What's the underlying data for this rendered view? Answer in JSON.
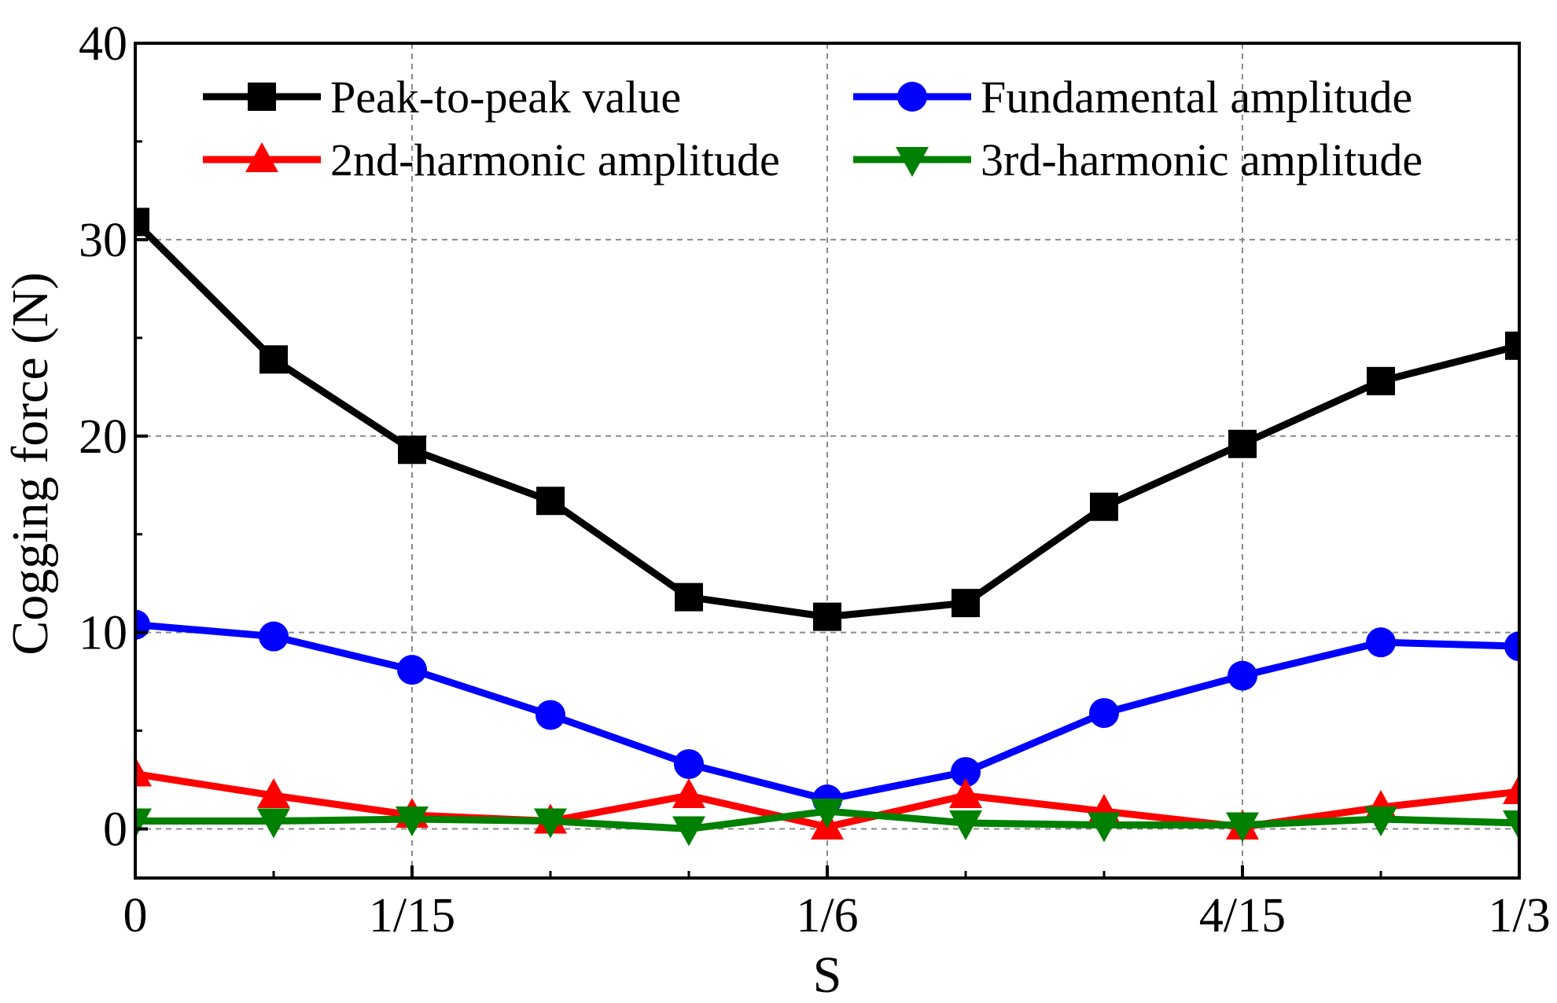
{
  "chart_data": {
    "type": "line",
    "title": "",
    "xlabel": "S",
    "ylabel": "Cogging force (N)",
    "x": [
      0,
      1,
      2,
      3,
      4,
      5,
      6,
      7,
      8,
      9,
      10
    ],
    "xlim": [
      0,
      10
    ],
    "ylim": [
      -2.5,
      40
    ],
    "x_ticks": [
      {
        "value": 0,
        "label": "0"
      },
      {
        "value": 2,
        "label": "1/15"
      },
      {
        "value": 5,
        "label": "1/6"
      },
      {
        "value": 8,
        "label": "4/15"
      },
      {
        "value": 10,
        "label": "1/3"
      }
    ],
    "x_minor_ticks": [
      1,
      3,
      4,
      6,
      7,
      9
    ],
    "y_ticks": [
      {
        "value": 0,
        "label": "0"
      },
      {
        "value": 10,
        "label": "10"
      },
      {
        "value": 20,
        "label": "20"
      },
      {
        "value": 30,
        "label": "30"
      },
      {
        "value": 40,
        "label": "40"
      }
    ],
    "y_minor_ticks": [
      5,
      15,
      25,
      35
    ],
    "grid": true,
    "legend_position": "top",
    "series": [
      {
        "name": "Peak-to-peak value",
        "color": "#000000",
        "marker": "square",
        "values": [
          30.9,
          23.9,
          19.3,
          16.7,
          11.8,
          10.8,
          11.5,
          16.4,
          19.6,
          22.8,
          24.6
        ]
      },
      {
        "name": "Fundamental amplitude",
        "color": "#0000ff",
        "marker": "circle",
        "values": [
          10.4,
          9.8,
          8.1,
          5.8,
          3.3,
          1.5,
          2.9,
          5.9,
          7.8,
          9.5,
          9.3
        ]
      },
      {
        "name": "2nd-harmonic amplitude",
        "color": "#ff0000",
        "marker": "triangle-up",
        "values": [
          2.8,
          1.7,
          0.7,
          0.4,
          1.7,
          0.1,
          1.7,
          0.9,
          0.1,
          1.1,
          1.9
        ]
      },
      {
        "name": "3rd-harmonic amplitude",
        "color": "#008000",
        "marker": "triangle-down",
        "values": [
          0.4,
          0.4,
          0.5,
          0.4,
          0.0,
          0.9,
          0.3,
          0.2,
          0.2,
          0.5,
          0.3
        ]
      }
    ]
  }
}
